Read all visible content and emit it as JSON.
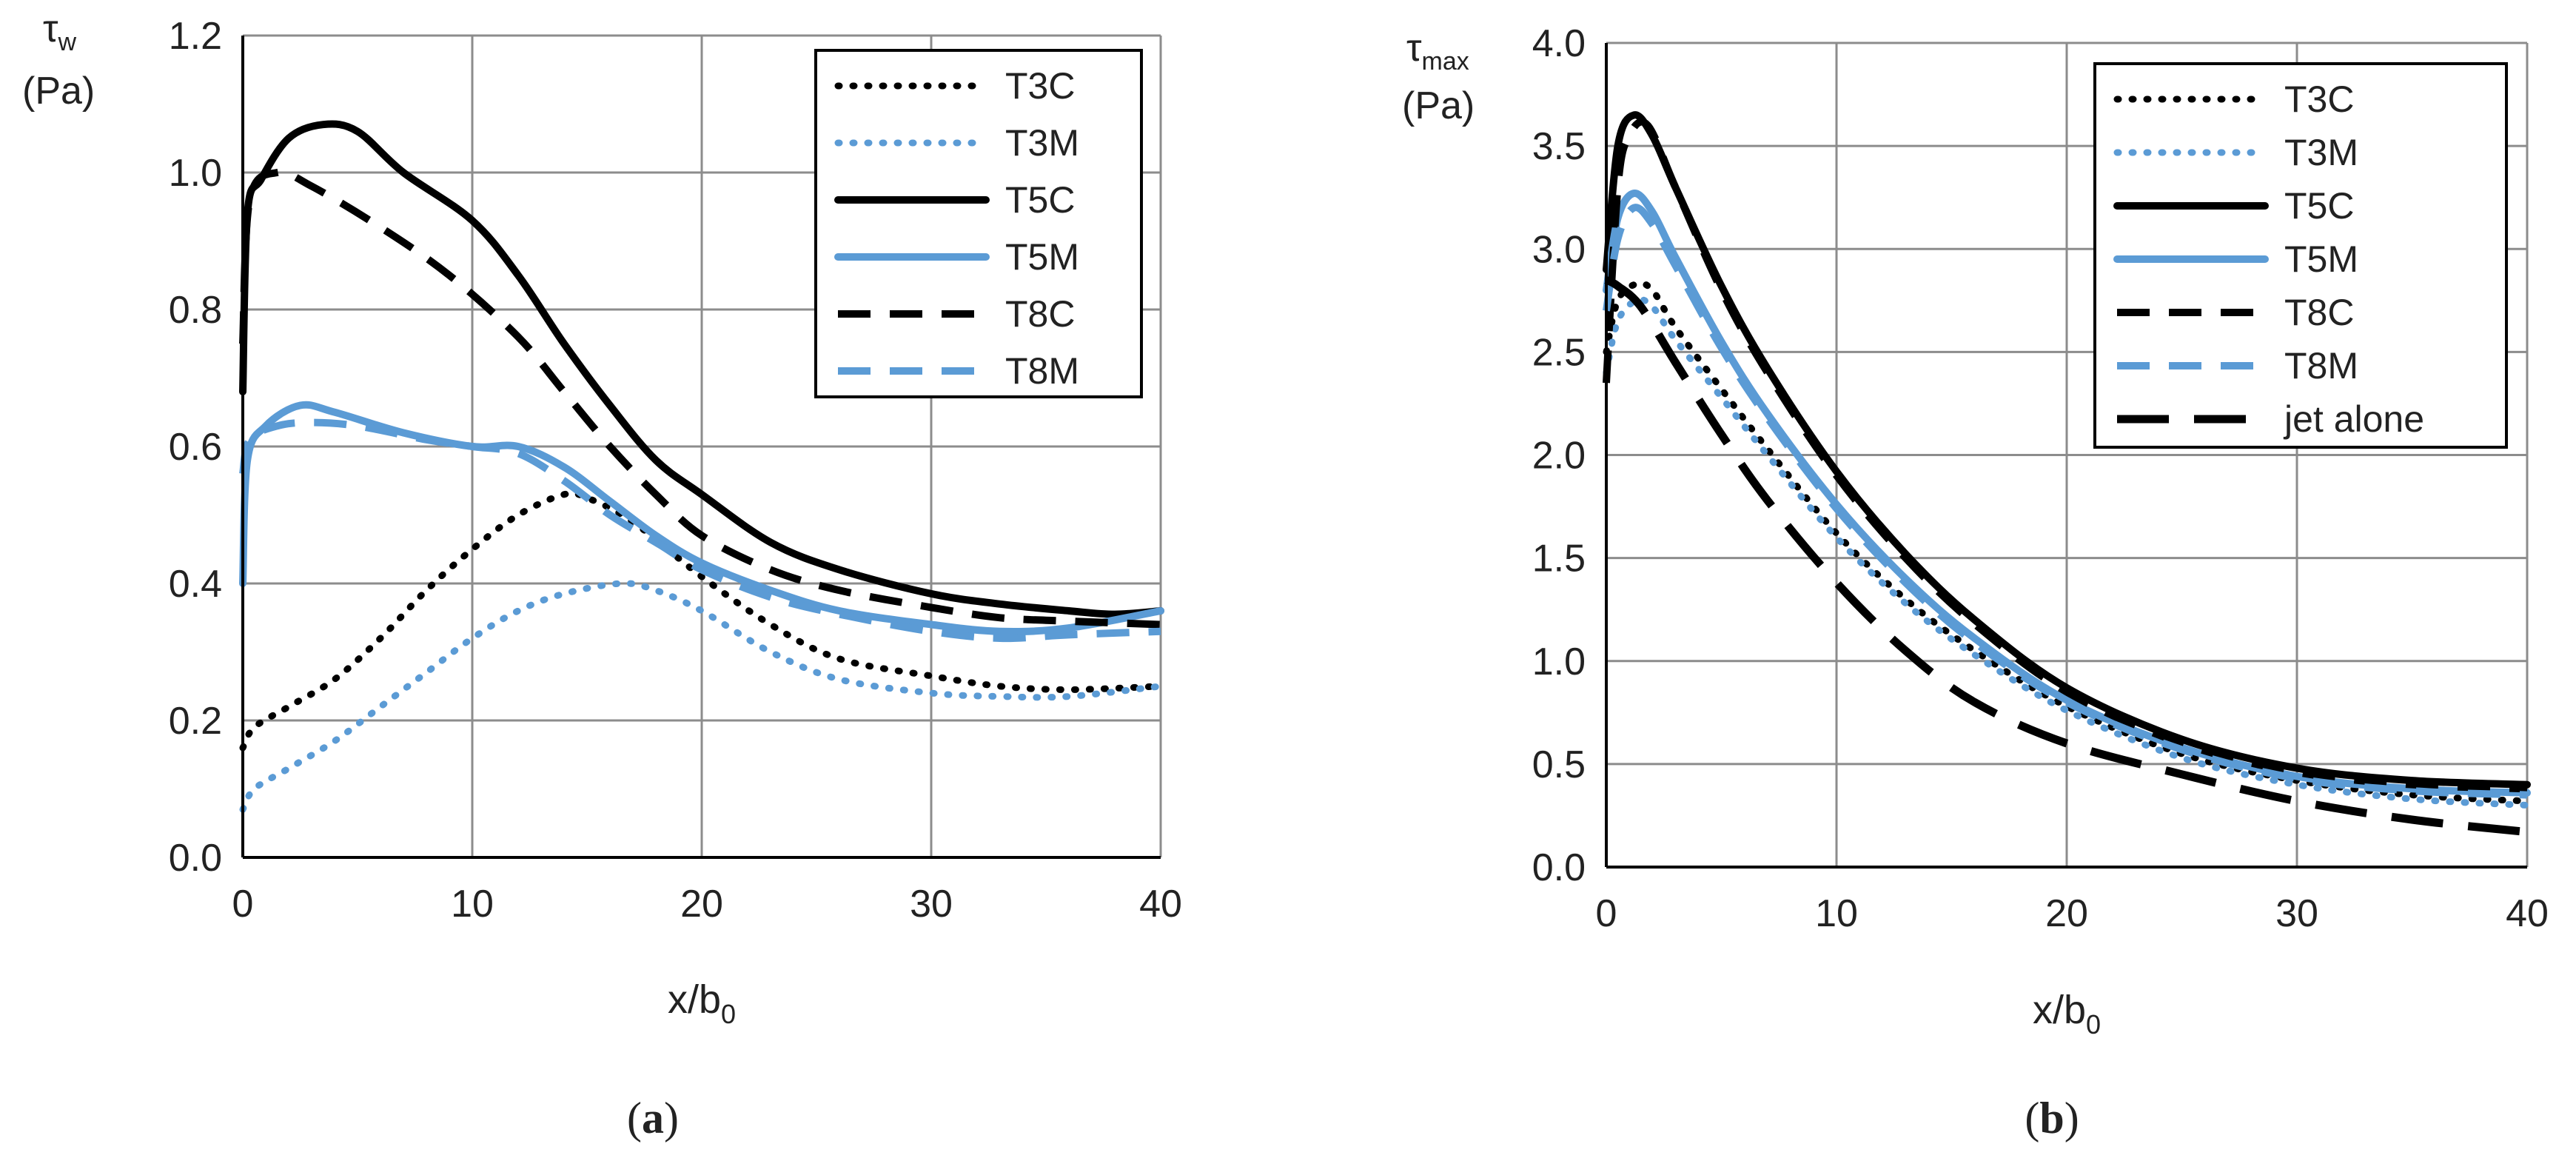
{
  "chart_data": [
    {
      "id": "a",
      "type": "line",
      "caption": {
        "open": "(",
        "letter": "a",
        "close": ")"
      },
      "ylabel": {
        "symbol": "τ",
        "sub": "w",
        "unit": "(Pa)"
      },
      "xlabel": {
        "main": "x/b",
        "sub": "0"
      },
      "xlim": [
        0,
        40
      ],
      "ylim": [
        0,
        1.2
      ],
      "xticks": [
        0,
        10,
        20,
        30,
        40
      ],
      "xtick_labels": [
        "0",
        "10",
        "20",
        "30",
        "40"
      ],
      "yticks": [
        0,
        0.2,
        0.4,
        0.6,
        0.8,
        1.0,
        1.2
      ],
      "ytick_labels": [
        "0.0",
        "0.2",
        "0.4",
        "0.6",
        "0.8",
        "1.0",
        "1.2"
      ],
      "grid": true,
      "legend_position": "top-right",
      "series": [
        {
          "name": "T3C",
          "color": "#000000",
          "style": "dotted",
          "points": [
            [
              0,
              0.16
            ],
            [
              0.5,
              0.19
            ],
            [
              2,
              0.22
            ],
            [
              4,
              0.26
            ],
            [
              6,
              0.32
            ],
            [
              8,
              0.39
            ],
            [
              10,
              0.45
            ],
            [
              12,
              0.5
            ],
            [
              14,
              0.53
            ],
            [
              15,
              0.525
            ],
            [
              17,
              0.49
            ],
            [
              20,
              0.41
            ],
            [
              23,
              0.34
            ],
            [
              26,
              0.29
            ],
            [
              30,
              0.265
            ],
            [
              33,
              0.25
            ],
            [
              36,
              0.245
            ],
            [
              40,
              0.25
            ]
          ]
        },
        {
          "name": "T3M",
          "color": "#5b9bd5",
          "style": "dotted",
          "points": [
            [
              0,
              0.07
            ],
            [
              0.5,
              0.1
            ],
            [
              2,
              0.13
            ],
            [
              4,
              0.17
            ],
            [
              6,
              0.22
            ],
            [
              8,
              0.27
            ],
            [
              10,
              0.32
            ],
            [
              12,
              0.36
            ],
            [
              14,
              0.385
            ],
            [
              16.5,
              0.4
            ],
            [
              18,
              0.39
            ],
            [
              20,
              0.36
            ],
            [
              23,
              0.3
            ],
            [
              26,
              0.26
            ],
            [
              30,
              0.24
            ],
            [
              33,
              0.235
            ],
            [
              36,
              0.235
            ],
            [
              40,
              0.25
            ]
          ]
        },
        {
          "name": "T5C",
          "color": "#000000",
          "style": "solid",
          "points": [
            [
              0,
              0.68
            ],
            [
              0.2,
              0.94
            ],
            [
              0.8,
              0.99
            ],
            [
              2,
              1.05
            ],
            [
              3.5,
              1.07
            ],
            [
              5,
              1.06
            ],
            [
              7,
              1.0
            ],
            [
              10,
              0.93
            ],
            [
              12,
              0.85
            ],
            [
              14,
              0.75
            ],
            [
              16,
              0.66
            ],
            [
              18,
              0.58
            ],
            [
              20,
              0.53
            ],
            [
              23,
              0.46
            ],
            [
              26,
              0.42
            ],
            [
              30,
              0.385
            ],
            [
              33,
              0.37
            ],
            [
              36,
              0.36
            ],
            [
              38,
              0.355
            ],
            [
              40,
              0.36
            ]
          ]
        },
        {
          "name": "T5M",
          "color": "#5b9bd5",
          "style": "solid",
          "points": [
            [
              0,
              0.4
            ],
            [
              0.2,
              0.58
            ],
            [
              1,
              0.63
            ],
            [
              2.5,
              0.66
            ],
            [
              4,
              0.65
            ],
            [
              7,
              0.62
            ],
            [
              10,
              0.6
            ],
            [
              12,
              0.6
            ],
            [
              14,
              0.57
            ],
            [
              16,
              0.52
            ],
            [
              18,
              0.47
            ],
            [
              20,
              0.43
            ],
            [
              23,
              0.39
            ],
            [
              26,
              0.36
            ],
            [
              30,
              0.34
            ],
            [
              33,
              0.33
            ],
            [
              36,
              0.335
            ],
            [
              40,
              0.36
            ]
          ]
        },
        {
          "name": "T8C",
          "color": "#000000",
          "style": "dashed",
          "points": [
            [
              0,
              0.75
            ],
            [
              0.3,
              0.96
            ],
            [
              1.5,
              1.0
            ],
            [
              3,
              0.98
            ],
            [
              6,
              0.92
            ],
            [
              9,
              0.85
            ],
            [
              12,
              0.76
            ],
            [
              14,
              0.68
            ],
            [
              16,
              0.6
            ],
            [
              18,
              0.53
            ],
            [
              20,
              0.47
            ],
            [
              23,
              0.42
            ],
            [
              26,
              0.39
            ],
            [
              30,
              0.365
            ],
            [
              33,
              0.35
            ],
            [
              36,
              0.345
            ],
            [
              40,
              0.34
            ]
          ]
        },
        {
          "name": "T8M",
          "color": "#5b9bd5",
          "style": "dashed",
          "points": [
            [
              0,
              0.56
            ],
            [
              0.3,
              0.61
            ],
            [
              1.5,
              0.63
            ],
            [
              3,
              0.635
            ],
            [
              5,
              0.63
            ],
            [
              8,
              0.61
            ],
            [
              10,
              0.6
            ],
            [
              12,
              0.59
            ],
            [
              14,
              0.55
            ],
            [
              16,
              0.5
            ],
            [
              18,
              0.46
            ],
            [
              20,
              0.42
            ],
            [
              23,
              0.38
            ],
            [
              26,
              0.355
            ],
            [
              30,
              0.33
            ],
            [
              33,
              0.32
            ],
            [
              36,
              0.325
            ],
            [
              40,
              0.33
            ]
          ]
        }
      ]
    },
    {
      "id": "b",
      "type": "line",
      "caption": {
        "open": "(",
        "letter": "b",
        "close": ")"
      },
      "ylabel": {
        "symbol": "τ",
        "sub": "max",
        "unit": "(Pa)"
      },
      "xlabel": {
        "main": "x/b",
        "sub": "0"
      },
      "xlim": [
        0,
        40
      ],
      "ylim": [
        0,
        4.0
      ],
      "xticks": [
        0,
        10,
        20,
        30,
        40
      ],
      "xtick_labels": [
        "0",
        "10",
        "20",
        "30",
        "40"
      ],
      "yticks": [
        0,
        0.5,
        1.0,
        1.5,
        2.0,
        2.5,
        3.0,
        3.5,
        4.0
      ],
      "ytick_labels": [
        "0.0",
        "0.5",
        "1.0",
        "1.5",
        "2.0",
        "2.5",
        "3.0",
        "3.5",
        "4.0"
      ],
      "grid": true,
      "legend_position": "top-right",
      "series": [
        {
          "name": "T3C",
          "color": "#000000",
          "style": "dotted",
          "points": [
            [
              0,
              2.5
            ],
            [
              0.5,
              2.75
            ],
            [
              1.3,
              2.83
            ],
            [
              2,
              2.8
            ],
            [
              3,
              2.62
            ],
            [
              5,
              2.32
            ],
            [
              7,
              2.03
            ],
            [
              10,
              1.62
            ],
            [
              13,
              1.3
            ],
            [
              16,
              1.05
            ],
            [
              20,
              0.78
            ],
            [
              25,
              0.55
            ],
            [
              30,
              0.42
            ],
            [
              35,
              0.35
            ],
            [
              40,
              0.32
            ]
          ]
        },
        {
          "name": "T3M",
          "color": "#5b9bd5",
          "style": "dotted",
          "points": [
            [
              0,
              2.4
            ],
            [
              0.5,
              2.65
            ],
            [
              1.3,
              2.75
            ],
            [
              2,
              2.72
            ],
            [
              3,
              2.56
            ],
            [
              5,
              2.28
            ],
            [
              7,
              2.0
            ],
            [
              10,
              1.6
            ],
            [
              13,
              1.28
            ],
            [
              16,
              1.03
            ],
            [
              20,
              0.76
            ],
            [
              25,
              0.53
            ],
            [
              30,
              0.4
            ],
            [
              35,
              0.33
            ],
            [
              40,
              0.3
            ]
          ]
        },
        {
          "name": "T5C",
          "color": "#000000",
          "style": "solid",
          "points": [
            [
              0,
              2.9
            ],
            [
              0.5,
              3.5
            ],
            [
              1.2,
              3.65
            ],
            [
              2,
              3.55
            ],
            [
              3,
              3.3
            ],
            [
              5,
              2.82
            ],
            [
              7,
              2.42
            ],
            [
              10,
              1.92
            ],
            [
              13,
              1.52
            ],
            [
              16,
              1.2
            ],
            [
              20,
              0.87
            ],
            [
              25,
              0.62
            ],
            [
              30,
              0.48
            ],
            [
              35,
              0.42
            ],
            [
              40,
              0.4
            ]
          ]
        },
        {
          "name": "T5M",
          "color": "#5b9bd5",
          "style": "solid",
          "points": [
            [
              0,
              2.8
            ],
            [
              0.5,
              3.15
            ],
            [
              1.2,
              3.27
            ],
            [
              2,
              3.18
            ],
            [
              3,
              2.96
            ],
            [
              5,
              2.55
            ],
            [
              7,
              2.2
            ],
            [
              10,
              1.76
            ],
            [
              13,
              1.4
            ],
            [
              16,
              1.11
            ],
            [
              20,
              0.81
            ],
            [
              25,
              0.58
            ],
            [
              30,
              0.44
            ],
            [
              35,
              0.38
            ],
            [
              40,
              0.36
            ]
          ]
        },
        {
          "name": "T8C",
          "color": "#000000",
          "style": "dashed",
          "points": [
            [
              0,
              2.35
            ],
            [
              0.5,
              3.3
            ],
            [
              1,
              3.55
            ],
            [
              1.8,
              3.6
            ],
            [
              3,
              3.3
            ],
            [
              5,
              2.8
            ],
            [
              7,
              2.4
            ],
            [
              10,
              1.9
            ],
            [
              13,
              1.5
            ],
            [
              16,
              1.18
            ],
            [
              20,
              0.85
            ],
            [
              25,
              0.6
            ],
            [
              30,
              0.46
            ],
            [
              35,
              0.4
            ],
            [
              40,
              0.38
            ]
          ]
        },
        {
          "name": "T8M",
          "color": "#5b9bd5",
          "style": "dashed",
          "points": [
            [
              0,
              2.7
            ],
            [
              0.5,
              3.05
            ],
            [
              1.2,
              3.2
            ],
            [
              2,
              3.12
            ],
            [
              3,
              2.92
            ],
            [
              5,
              2.52
            ],
            [
              7,
              2.18
            ],
            [
              10,
              1.74
            ],
            [
              13,
              1.38
            ],
            [
              16,
              1.09
            ],
            [
              20,
              0.8
            ],
            [
              25,
              0.57
            ],
            [
              30,
              0.43
            ],
            [
              35,
              0.37
            ],
            [
              40,
              0.35
            ]
          ]
        },
        {
          "name": "jet alone",
          "color": "#000000",
          "style": "longdash",
          "points": [
            [
              0,
              2.85
            ],
            [
              0.5,
              2.82
            ],
            [
              1.5,
              2.72
            ],
            [
              3,
              2.45
            ],
            [
              5,
              2.1
            ],
            [
              7,
              1.78
            ],
            [
              10,
              1.38
            ],
            [
              13,
              1.05
            ],
            [
              16,
              0.8
            ],
            [
              20,
              0.6
            ],
            [
              25,
              0.45
            ],
            [
              30,
              0.32
            ],
            [
              35,
              0.23
            ],
            [
              40,
              0.17
            ]
          ]
        }
      ]
    }
  ]
}
